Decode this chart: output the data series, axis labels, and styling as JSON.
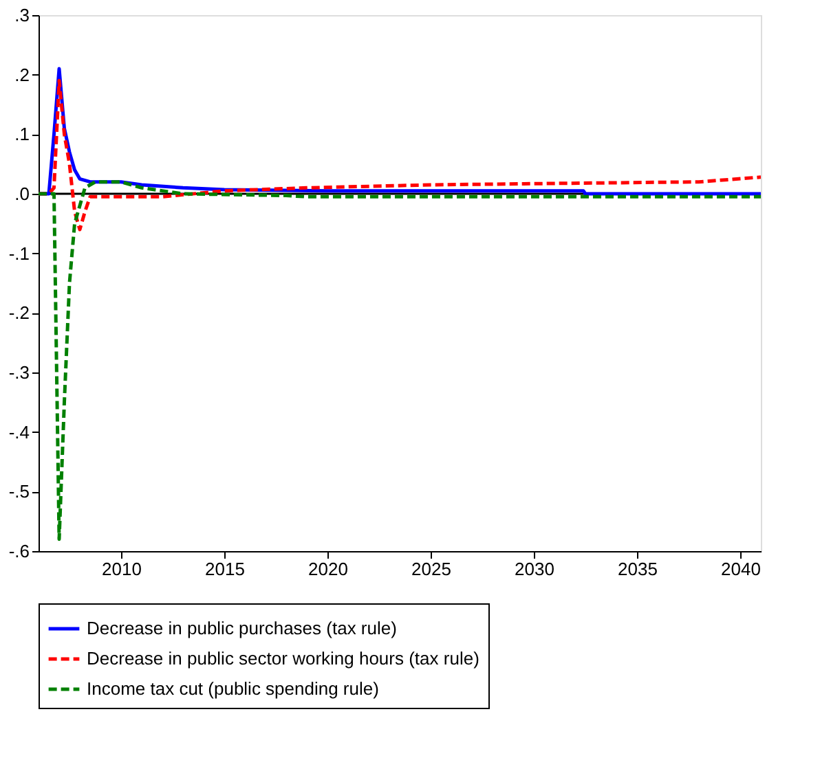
{
  "chart_data": {
    "type": "line",
    "xlim": [
      2006,
      2041
    ],
    "xticks": [
      2010,
      2015,
      2020,
      2025,
      2030,
      2035,
      2040
    ],
    "ylim": [
      -0.6,
      0.3
    ],
    "yticks": [
      {
        "value": -0.6,
        "label": "-.6"
      },
      {
        "value": -0.5,
        "label": "-.5"
      },
      {
        "value": -0.4,
        "label": "-.4"
      },
      {
        "value": -0.3,
        "label": "-.3"
      },
      {
        "value": -0.2,
        "label": "-.2"
      },
      {
        "value": -0.1,
        "label": "-.1"
      },
      {
        "value": 0,
        "label": ".0"
      },
      {
        "value": 0.1,
        "label": ".1"
      },
      {
        "value": 0.2,
        "label": ".2"
      },
      {
        "value": 0.3,
        "label": ".3"
      }
    ],
    "grid": false,
    "legend": "bottom",
    "marker": "none",
    "ref_lines": [
      {
        "axis": "y",
        "value": 0,
        "color": "#000000",
        "line_style": "solid"
      }
    ],
    "series": [
      {
        "name": "Decrease in public purchases (tax rule)",
        "color": "#0000ff",
        "line_style": "solid",
        "x": [
          2006,
          2006.5,
          2006.75,
          2007,
          2007.25,
          2007.5,
          2007.75,
          2008,
          2008.5,
          2010,
          2011,
          2013,
          2015,
          2020,
          2032.4,
          2032.5,
          2041
        ],
        "values": [
          0,
          0,
          0.1,
          0.21,
          0.11,
          0.07,
          0.04,
          0.025,
          0.02,
          0.02,
          0.015,
          0.01,
          0.007,
          0.005,
          0.005,
          0,
          0
        ]
      },
      {
        "name": "Decrease in public sector working hours (tax rule)",
        "color": "#ff0000",
        "line_style": "dashed",
        "x": [
          2006,
          2006.5,
          2006.75,
          2007,
          2007.25,
          2007.5,
          2007.75,
          2008,
          2008.25,
          2008.5,
          2010,
          2012,
          2015,
          2019,
          2025,
          2030,
          2038,
          2041
        ],
        "values": [
          0,
          0,
          0.01,
          0.19,
          0.1,
          0.05,
          -0.03,
          -0.06,
          -0.03,
          -0.005,
          -0.005,
          -0.005,
          0.005,
          0.01,
          0.015,
          0.017,
          0.02,
          0.028
        ]
      },
      {
        "name": "Income tax cut (public spending rule)",
        "color": "#008000",
        "line_style": "dashed",
        "x": [
          2006,
          2006.75,
          2007,
          2007.25,
          2007.5,
          2007.75,
          2008.25,
          2008.75,
          2010,
          2011,
          2013,
          2018,
          2019,
          2041
        ],
        "values": [
          0,
          0,
          -0.58,
          -0.35,
          -0.15,
          -0.05,
          0.01,
          0.02,
          0.02,
          0.01,
          0,
          -0.003,
          -0.005,
          -0.005
        ]
      }
    ]
  }
}
